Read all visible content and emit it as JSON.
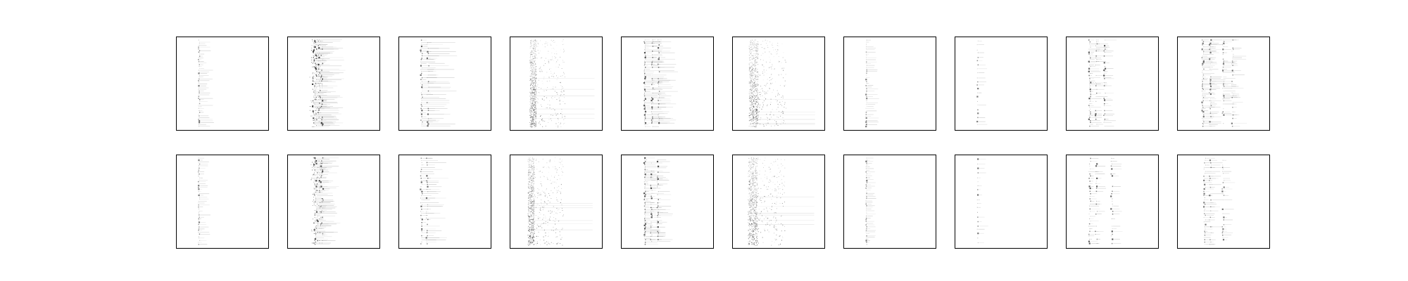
{
  "figure": {
    "rows": 2,
    "cols": 10,
    "background": "#ffffff",
    "frame_color": "#000000",
    "ink_color": "#000000"
  },
  "chart_data": [
    {
      "type": "heatmap",
      "panel": "r1c1",
      "pattern": "sparse-dots",
      "x_centers": [
        0.25
      ],
      "x_jitter": 0.015,
      "row_count": 50,
      "intensity": 0.55,
      "trail_length": 0.15,
      "seed": 11,
      "title": "",
      "xlabel": "",
      "ylabel": "",
      "axis_ticks": "none",
      "grid": false
    },
    {
      "type": "heatmap",
      "panel": "r1c2",
      "pattern": "dense-band",
      "x_centers": [
        0.3,
        0.36
      ],
      "x_jitter": 0.05,
      "row_count": 75,
      "intensity": 0.75,
      "trail_length": 0.25,
      "seed": 12,
      "title": "",
      "xlabel": "",
      "ylabel": "",
      "axis_ticks": "none",
      "grid": false
    },
    {
      "type": "heatmap",
      "panel": "r1c3",
      "pattern": "sparse-rows",
      "x_centers": [
        0.25,
        0.32
      ],
      "x_jitter": 0.02,
      "row_count": 45,
      "intensity": 0.6,
      "trail_length": 0.3,
      "seed": 13,
      "title": "",
      "xlabel": "",
      "ylabel": "",
      "axis_ticks": "none",
      "grid": false
    },
    {
      "type": "heatmap",
      "panel": "r1c4",
      "pattern": "noisy-column",
      "x_centers": [
        0.25
      ],
      "x_jitter": 0.035,
      "row_count": 0,
      "intensity": 0.85,
      "trail_length": 0.0,
      "seed": 14,
      "title": "",
      "xlabel": "",
      "ylabel": "",
      "axis_ticks": "none",
      "grid": false
    },
    {
      "type": "heatmap",
      "panel": "r1c5",
      "pattern": "paired-dots",
      "x_centers": [
        0.26,
        0.34,
        0.41
      ],
      "x_jitter": 0.015,
      "row_count": 55,
      "intensity": 0.7,
      "trail_length": 0.2,
      "seed": 15,
      "title": "",
      "xlabel": "",
      "ylabel": "",
      "axis_ticks": "none",
      "grid": false
    },
    {
      "type": "heatmap",
      "panel": "r1c6",
      "pattern": "noisy-column",
      "x_centers": [
        0.23
      ],
      "x_jitter": 0.05,
      "row_count": 0,
      "intensity": 0.9,
      "trail_length": 0.0,
      "seed": 16,
      "title": "",
      "xlabel": "",
      "ylabel": "",
      "axis_ticks": "none",
      "grid": false
    },
    {
      "type": "heatmap",
      "panel": "r1c7",
      "pattern": "sparse-dots",
      "x_centers": [
        0.25
      ],
      "x_jitter": 0.01,
      "row_count": 45,
      "intensity": 0.5,
      "trail_length": 0.12,
      "seed": 17,
      "title": "",
      "xlabel": "",
      "ylabel": "",
      "axis_ticks": "none",
      "grid": false
    },
    {
      "type": "heatmap",
      "panel": "r1c8",
      "pattern": "sparse-dots",
      "x_centers": [
        0.25
      ],
      "x_jitter": 0.01,
      "row_count": 22,
      "intensity": 0.55,
      "trail_length": 0.1,
      "seed": 18,
      "title": "",
      "xlabel": "",
      "ylabel": "",
      "axis_ticks": "none",
      "grid": false
    },
    {
      "type": "heatmap",
      "panel": "r1c9",
      "pattern": "paired-dots",
      "x_centers": [
        0.26,
        0.33,
        0.42
      ],
      "x_jitter": 0.02,
      "row_count": 50,
      "intensity": 0.65,
      "trail_length": 0.12,
      "seed": 19,
      "title": "",
      "xlabel": "",
      "ylabel": "",
      "axis_ticks": "none",
      "grid": false
    },
    {
      "type": "heatmap",
      "panel": "r1c10",
      "pattern": "paired-dots",
      "x_centers": [
        0.28,
        0.36,
        0.5,
        0.6
      ],
      "x_jitter": 0.02,
      "row_count": 55,
      "intensity": 0.55,
      "trail_length": 0.15,
      "seed": 20,
      "title": "",
      "xlabel": "",
      "ylabel": "",
      "axis_ticks": "none",
      "grid": false
    },
    {
      "type": "heatmap",
      "panel": "r2c1",
      "pattern": "sparse-dots",
      "x_centers": [
        0.25
      ],
      "x_jitter": 0.015,
      "row_count": 45,
      "intensity": 0.55,
      "trail_length": 0.12,
      "seed": 21,
      "title": "",
      "xlabel": "",
      "ylabel": "",
      "axis_ticks": "none",
      "grid": false
    },
    {
      "type": "heatmap",
      "panel": "r2c2",
      "pattern": "dense-band",
      "x_centers": [
        0.31,
        0.37
      ],
      "x_jitter": 0.045,
      "row_count": 65,
      "intensity": 0.7,
      "trail_length": 0.2,
      "seed": 22,
      "title": "",
      "xlabel": "",
      "ylabel": "",
      "axis_ticks": "none",
      "grid": false
    },
    {
      "type": "heatmap",
      "panel": "r2c3",
      "pattern": "sparse-rows",
      "x_centers": [
        0.25,
        0.31
      ],
      "x_jitter": 0.02,
      "row_count": 40,
      "intensity": 0.6,
      "trail_length": 0.22,
      "seed": 23,
      "title": "",
      "xlabel": "",
      "ylabel": "",
      "axis_ticks": "none",
      "grid": false
    },
    {
      "type": "heatmap",
      "panel": "r2c4",
      "pattern": "noisy-column",
      "x_centers": [
        0.23
      ],
      "x_jitter": 0.035,
      "row_count": 0,
      "intensity": 0.9,
      "trail_length": 0.0,
      "seed": 24,
      "title": "",
      "xlabel": "",
      "ylabel": "",
      "axis_ticks": "none",
      "grid": false
    },
    {
      "type": "heatmap",
      "panel": "r2c5",
      "pattern": "paired-dots",
      "x_centers": [
        0.26,
        0.33,
        0.4
      ],
      "x_jitter": 0.015,
      "row_count": 55,
      "intensity": 0.7,
      "trail_length": 0.15,
      "seed": 25,
      "title": "",
      "xlabel": "",
      "ylabel": "",
      "axis_ticks": "none",
      "grid": false
    },
    {
      "type": "heatmap",
      "panel": "r2c6",
      "pattern": "noisy-column",
      "x_centers": [
        0.22
      ],
      "x_jitter": 0.05,
      "row_count": 0,
      "intensity": 0.9,
      "trail_length": 0.0,
      "seed": 26,
      "title": "",
      "xlabel": "",
      "ylabel": "",
      "axis_ticks": "none",
      "grid": false
    },
    {
      "type": "heatmap",
      "panel": "r2c7",
      "pattern": "sparse-dots",
      "x_centers": [
        0.25
      ],
      "x_jitter": 0.01,
      "row_count": 50,
      "intensity": 0.55,
      "trail_length": 0.1,
      "seed": 27,
      "title": "",
      "xlabel": "",
      "ylabel": "",
      "axis_ticks": "none",
      "grid": false
    },
    {
      "type": "heatmap",
      "panel": "r2c8",
      "pattern": "sparse-dots",
      "x_centers": [
        0.25
      ],
      "x_jitter": 0.01,
      "row_count": 20,
      "intensity": 0.55,
      "trail_length": 0.1,
      "seed": 28,
      "title": "",
      "xlabel": "",
      "ylabel": "",
      "axis_ticks": "none",
      "grid": false
    },
    {
      "type": "heatmap",
      "panel": "r2c9",
      "pattern": "paired-dots",
      "x_centers": [
        0.26,
        0.33,
        0.5
      ],
      "x_jitter": 0.02,
      "row_count": 35,
      "intensity": 0.65,
      "trail_length": 0.1,
      "seed": 29,
      "title": "",
      "xlabel": "",
      "ylabel": "",
      "axis_ticks": "none",
      "grid": false
    },
    {
      "type": "heatmap",
      "panel": "r2c10",
      "pattern": "paired-dots",
      "x_centers": [
        0.3,
        0.36,
        0.5
      ],
      "x_jitter": 0.02,
      "row_count": 40,
      "intensity": 0.55,
      "trail_length": 0.12,
      "seed": 30,
      "title": "",
      "xlabel": "",
      "ylabel": "",
      "axis_ticks": "none",
      "grid": false
    }
  ]
}
